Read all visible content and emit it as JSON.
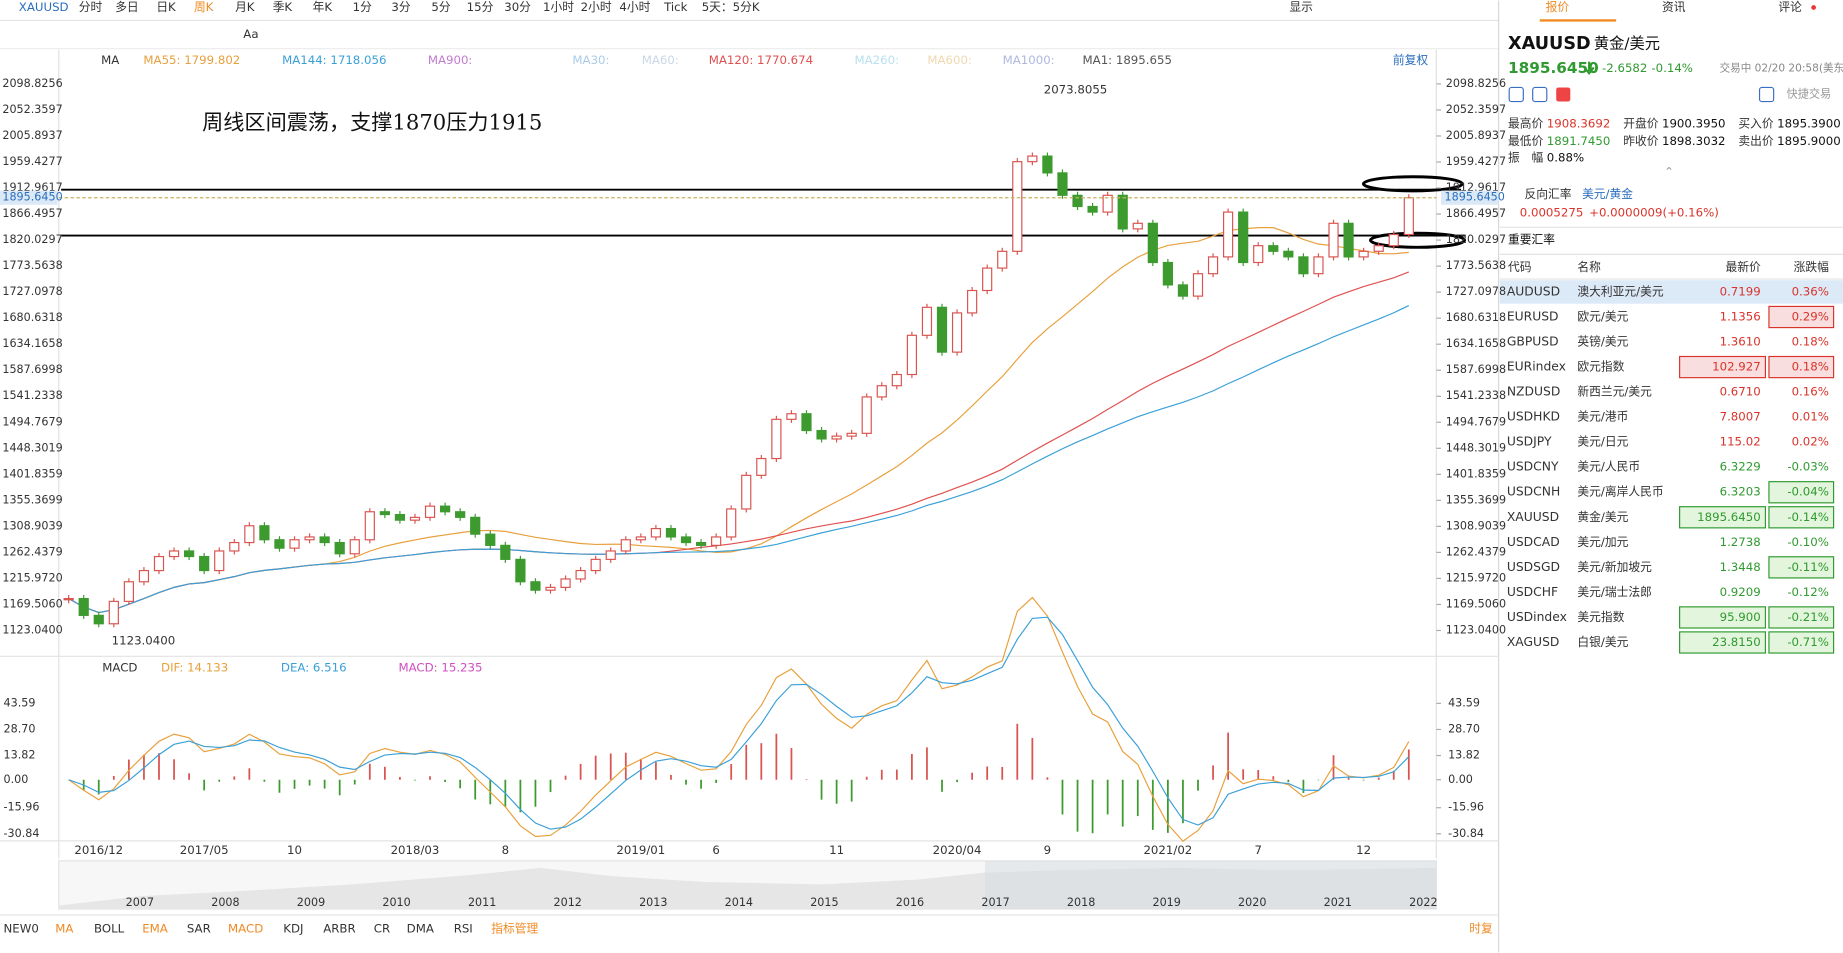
{
  "toolbar": {
    "symbol": "XAUUSD",
    "periods": [
      "分时",
      "多日",
      "日K",
      "周K",
      "月K",
      "季K",
      "年K",
      "1分",
      "3分",
      "5分",
      "15分",
      "30分",
      "1小时",
      "2小时",
      "4小时",
      "Tick",
      "5天：5分K"
    ],
    "active": 3,
    "display": "显示",
    "text_tool": "Aa"
  },
  "chart_data": [
    {
      "type": "candlestick",
      "indicator": "MA",
      "restore": "前复权",
      "annotation": "周线区间震荡，支撑1870压力1915",
      "high_label": "2073.8055",
      "low_label": "1123.0400",
      "last_price": {
        "value": 1895.645,
        "label": "1895.6450"
      },
      "legend": [
        {
          "label": "MA55: 1799.802",
          "color": "#e8a03c"
        },
        {
          "label": "MA144: 1718.056",
          "color": "#3aa0d8"
        },
        {
          "label": "MA900:",
          "color": "#c27bd0"
        },
        {
          "label": "MA30:",
          "color": "#a9cbe8"
        },
        {
          "label": "MA60:",
          "color": "#c9d7e8"
        },
        {
          "label": "MA120: 1770.674",
          "color": "#e05050"
        },
        {
          "label": "MA260:",
          "color": "#b8e0f2"
        },
        {
          "label": "MA600:",
          "color": "#f0d8b0"
        },
        {
          "label": "MA1000:",
          "color": "#b0b8e0"
        },
        {
          "label": "MA1: 1895.655",
          "color": "#555555"
        }
      ],
      "categories": [
        null,
        null,
        "2016/12",
        null,
        null,
        null,
        null,
        null,
        null,
        "2017/05",
        null,
        null,
        null,
        null,
        null,
        "10",
        null,
        null,
        null,
        null,
        null,
        null,
        null,
        "2018/03",
        null,
        null,
        null,
        null,
        null,
        "8",
        null,
        null,
        null,
        null,
        null,
        null,
        null,
        null,
        "2019/01",
        null,
        null,
        null,
        null,
        "6",
        null,
        null,
        null,
        null,
        null,
        null,
        null,
        "11",
        null,
        null,
        null,
        null,
        null,
        null,
        null,
        "2020/04",
        null,
        null,
        null,
        null,
        null,
        "9",
        null,
        null,
        null,
        null,
        null,
        null,
        null,
        "2021/02",
        null,
        null,
        null,
        null,
        null,
        "7",
        null,
        null,
        null,
        null,
        null,
        null,
        "12",
        null,
        null,
        null
      ],
      "values": [
        1180,
        1150,
        1135,
        1175,
        1210,
        1230,
        1255,
        1265,
        1255,
        1230,
        1265,
        1280,
        1310,
        1285,
        1270,
        1285,
        1290,
        1280,
        1260,
        1285,
        1335,
        1330,
        1320,
        1325,
        1345,
        1335,
        1325,
        1295,
        1275,
        1250,
        1210,
        1195,
        1200,
        1215,
        1230,
        1250,
        1265,
        1285,
        1290,
        1305,
        1290,
        1280,
        1275,
        1290,
        1340,
        1400,
        1430,
        1500,
        1510,
        1480,
        1465,
        1470,
        1475,
        1540,
        1560,
        1580,
        1650,
        1700,
        1620,
        1690,
        1730,
        1770,
        1800,
        1960,
        1970,
        1940,
        1900,
        1880,
        1870,
        1900,
        1840,
        1850,
        1780,
        1740,
        1720,
        1760,
        1790,
        1870,
        1780,
        1810,
        1800,
        1790,
        1760,
        1790,
        1850,
        1790,
        1800,
        1810,
        1830,
        1895.645
      ],
      "up_color": "#d9534f",
      "down_color": "#3c9a2f",
      "ylim": [
        1123.04,
        2098.8256
      ],
      "yticks": [
        {
          "value": 1123.04,
          "label": "1123.0400"
        },
        {
          "value": 1169.506,
          "label": "1169.5060"
        },
        {
          "value": 1215.972,
          "label": "1215.9720"
        },
        1262.4379,
        1308.9039,
        1355.3699,
        1401.8359,
        1448.3019,
        1494.7679,
        1541.2338,
        1587.6998,
        1634.1658,
        1680.6318,
        1727.0978,
        1773.5638,
        1820.0297,
        1866.4957,
        1912.9617,
        1959.4277,
        2005.8937,
        2052.3597,
        2098.8256
      ]
    },
    {
      "type": "macd",
      "indicator": "MACD",
      "legend": [
        {
          "label": "DIF: 14.133",
          "color": "#e8a03c"
        },
        {
          "label": "DEA: 6.516",
          "color": "#3aa0d8"
        },
        {
          "label": "MACD: 15.235",
          "color": "#d04fc0"
        }
      ],
      "ylim": [
        -30.84,
        43.59
      ],
      "yticks": [
        -30.84,
        -15.96,
        {
          "value": 0,
          "label": "0.00"
        },
        13.82,
        {
          "value": 28.7,
          "label": "28.70"
        },
        43.59
      ]
    }
  ],
  "navigator": {
    "years": [
      "2007",
      "2008",
      "2009",
      "2010",
      "2011",
      "2012",
      "2013",
      "2014",
      "2015",
      "2016",
      "2017",
      "2018",
      "2019",
      "2020",
      "2021",
      "2022"
    ]
  },
  "indicator_tabs": [
    "NEW0",
    "MA",
    "BOLL",
    "EMA",
    "SAR",
    "MACD",
    "KDJ",
    "ARBR",
    "CR",
    "DMA",
    "RSI",
    "指标管理"
  ],
  "time_restore": "时复",
  "panel": {
    "tabs": [
      "报价",
      "资讯",
      "评论"
    ],
    "symbol": "XAUUSD",
    "name": "黄金/美元",
    "price": "1895.6450",
    "change": "-2.6582",
    "change_pct": "-0.14%",
    "status": "交易中 02/20 20:58(美东)",
    "quick_trade": "快捷交易",
    "stats": [
      [
        "最高价",
        "1908.3692"
      ],
      [
        "开盘价",
        "1900.3950"
      ],
      [
        "买入价",
        "1895.3900"
      ],
      [
        "最低价",
        "1891.7450"
      ],
      [
        "昨收价",
        "1898.3032"
      ],
      [
        "卖出价",
        "1895.9000"
      ]
    ],
    "amplitude_label": "振　幅",
    "amplitude": "0.88%",
    "reverse": {
      "label": "反向汇率",
      "pair": "美元/黄金",
      "price": "0.0005275",
      "change": "+0.0000009(+0.16%)"
    },
    "table": {
      "title": "重要汇率",
      "header": [
        "代码",
        "名称",
        "最新价",
        "涨跌幅"
      ],
      "rows": [
        {
          "code": "AUDUSD",
          "name": "澳大利亚元/美元",
          "price": "0.7199",
          "change": "0.36%",
          "boxed": []
        },
        {
          "code": "EURUSD",
          "name": "欧元/美元",
          "price": "1.1356",
          "change": "0.29%",
          "boxed": [
            "change"
          ]
        },
        {
          "code": "GBPUSD",
          "name": "英镑/美元",
          "price": "1.3610",
          "change": "0.18%",
          "boxed": []
        },
        {
          "code": "EURindex",
          "name": "欧元指数",
          "price": "102.927",
          "change": "0.18%",
          "boxed": [
            "price",
            "change"
          ]
        },
        {
          "code": "NZDUSD",
          "name": "新西兰元/美元",
          "price": "0.6710",
          "change": "0.16%",
          "boxed": []
        },
        {
          "code": "USDHKD",
          "name": "美元/港币",
          "price": "7.8007",
          "change": "0.01%",
          "boxed": []
        },
        {
          "code": "USDJPY",
          "name": "美元/日元",
          "price": "115.02",
          "change": "0.02%",
          "boxed": []
        },
        {
          "code": "USDCNY",
          "name": "美元/人民币",
          "price": "6.3229",
          "change": "-0.03%",
          "boxed": []
        },
        {
          "code": "USDCNH",
          "name": "美元/离岸人民币",
          "price": "6.3203",
          "change": "-0.04%",
          "boxed": [
            "change"
          ]
        },
        {
          "code": "XAUUSD",
          "name": "黄金/美元",
          "price": "1895.6450",
          "change": "-0.14%",
          "boxed": [
            "price",
            "change"
          ]
        },
        {
          "code": "USDCAD",
          "name": "美元/加元",
          "price": "1.2738",
          "change": "-0.10%",
          "boxed": []
        },
        {
          "code": "USDSGD",
          "name": "美元/新加坡元",
          "price": "1.3448",
          "change": "-0.11%",
          "boxed": [
            "change"
          ]
        },
        {
          "code": "USDCHF",
          "name": "美元/瑞士法郎",
          "price": "0.9209",
          "change": "-0.12%",
          "boxed": []
        },
        {
          "code": "USDindex",
          "name": "美元指数",
          "price": "95.900",
          "change": "-0.21%",
          "boxed": [
            "price",
            "change"
          ]
        },
        {
          "code": "XAGUSD",
          "name": "白银/美元",
          "price": "23.8150",
          "change": "-0.71%",
          "boxed": [
            "price",
            "change"
          ]
        }
      ]
    }
  }
}
